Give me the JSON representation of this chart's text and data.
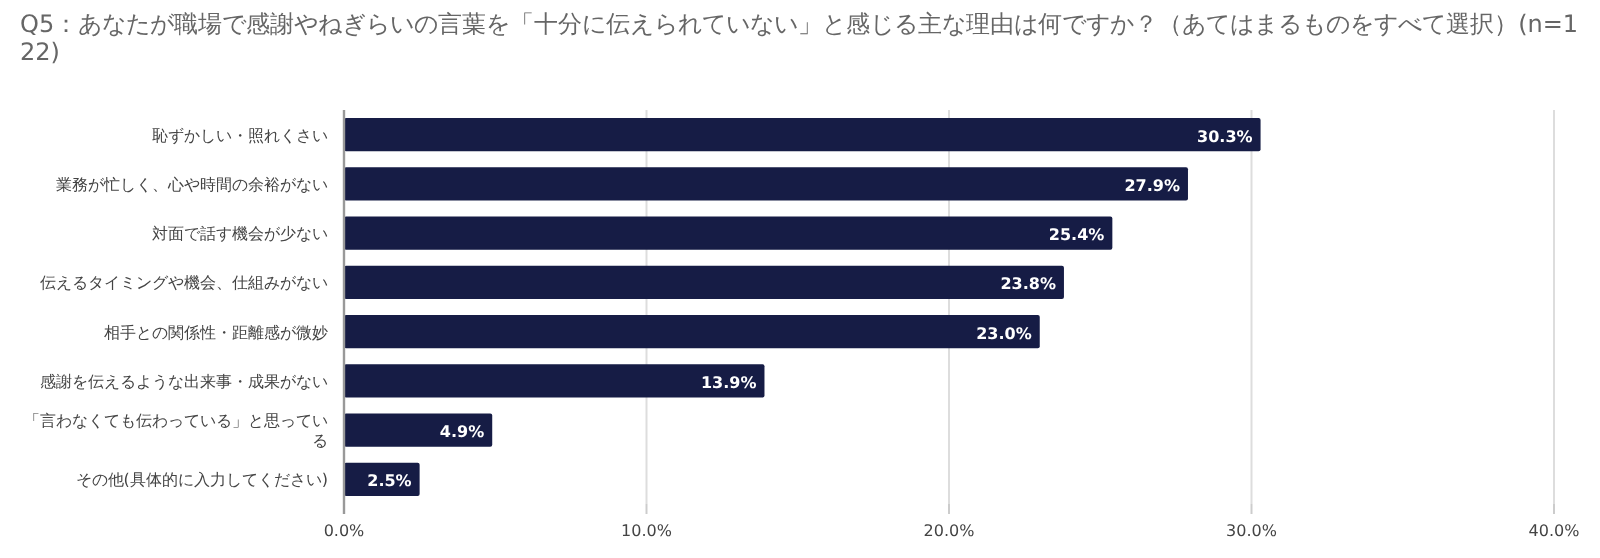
{
  "chart_data": {
    "type": "bar",
    "orientation": "horizontal",
    "title": "Q5：あなたが職場で感謝やねぎらいの言葉を「十分に伝えられていない」と感じる主な理由は何ですか？（あてはまるものをすべて選択）(n=122)",
    "categories": [
      "恥ずかしい・照れくさい",
      "業務が忙しく、心や時間の余裕がない",
      "対面で話す機会が少ない",
      "伝えるタイミングや機会、仕組みがない",
      "相手との関係性・距離感が微妙",
      "感謝を伝えるような出来事・成果がない",
      "「言わなくても伝わっている」と思っている",
      "その他(具体的に入力してください)"
    ],
    "values": [
      30.3,
      27.9,
      25.4,
      23.8,
      23.0,
      13.9,
      4.9,
      2.5
    ],
    "value_labels": [
      "30.3%",
      "27.9%",
      "25.4%",
      "23.8%",
      "23.0%",
      "13.9%",
      "4.9%",
      "2.5%"
    ],
    "color": "#161c45",
    "xlim": [
      0,
      40
    ],
    "xticks": [
      {
        "value": 0,
        "label": "0.0%"
      },
      {
        "value": 10,
        "label": "10.0%"
      },
      {
        "value": 20,
        "label": "20.0%"
      },
      {
        "value": 30,
        "label": "30.0%"
      },
      {
        "value": 40,
        "label": "40.0%"
      }
    ],
    "grid": "x"
  }
}
